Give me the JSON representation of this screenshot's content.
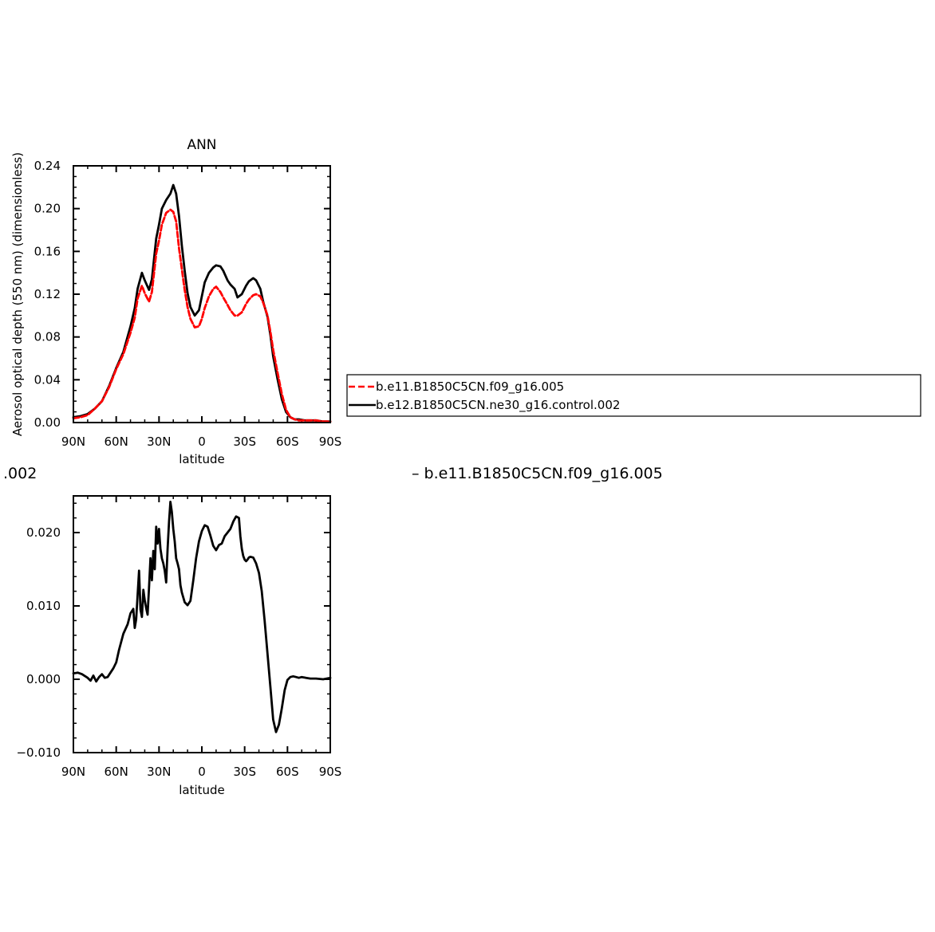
{
  "chart_data": [
    {
      "type": "line",
      "title": "ANN",
      "xlabel": "latitude",
      "ylabel": "Aerosol optical depth (550 nm) (dimensionless)",
      "xlim": [
        90,
        -90
      ],
      "ylim": [
        0.0,
        0.24
      ],
      "x_tick_values": [
        90,
        60,
        30,
        0,
        -30,
        -60,
        -90
      ],
      "x_tick_labels": [
        "90N",
        "60N",
        "30N",
        "0",
        "30S",
        "60S",
        "90S"
      ],
      "y_tick_values": [
        0.0,
        0.04,
        0.08,
        0.12,
        0.16,
        0.2,
        0.24
      ],
      "y_tick_labels": [
        "0.00",
        "0.04",
        "0.08",
        "0.12",
        "0.16",
        "0.20",
        "0.24"
      ],
      "grid": false,
      "legend_position": "right",
      "series": [
        {
          "name": "b.e11.B1850C5CN.f09_g16.005",
          "color": "#ff0000",
          "dash": "dashed",
          "x": [
            90,
            85,
            80,
            75,
            70,
            65,
            60,
            55,
            50,
            47,
            45,
            42,
            40,
            37,
            35,
            32,
            30,
            28,
            25,
            22,
            20,
            18,
            16,
            14,
            12,
            10,
            8,
            5,
            2,
            0,
            -2,
            -5,
            -8,
            -10,
            -13,
            -15,
            -18,
            -20,
            -23,
            -25,
            -28,
            -31,
            -33,
            -36,
            -38,
            -41,
            -43,
            -46,
            -48,
            -50,
            -53,
            -56,
            -59,
            -62,
            -65,
            -68,
            -72,
            -76,
            -80,
            -85,
            -90
          ],
          "y": [
            0.004,
            0.005,
            0.007,
            0.013,
            0.02,
            0.033,
            0.05,
            0.064,
            0.084,
            0.098,
            0.116,
            0.128,
            0.121,
            0.113,
            0.122,
            0.158,
            0.17,
            0.185,
            0.196,
            0.199,
            0.197,
            0.188,
            0.163,
            0.143,
            0.124,
            0.108,
            0.097,
            0.089,
            0.09,
            0.097,
            0.107,
            0.118,
            0.125,
            0.127,
            0.122,
            0.117,
            0.11,
            0.105,
            0.1,
            0.1,
            0.103,
            0.111,
            0.115,
            0.119,
            0.12,
            0.118,
            0.112,
            0.1,
            0.085,
            0.068,
            0.047,
            0.027,
            0.012,
            0.005,
            0.003,
            0.002,
            0.002,
            0.002,
            0.002,
            0.001,
            0.001
          ]
        },
        {
          "name": "b.e12.B1850C5CN.ne30_g16.control.002",
          "color": "#000000",
          "dash": "solid",
          "x": [
            90,
            85,
            80,
            75,
            70,
            65,
            60,
            55,
            50,
            47,
            45,
            42,
            40,
            37,
            35,
            32,
            30,
            28,
            25,
            22,
            20,
            18,
            16,
            14,
            12,
            10,
            8,
            5,
            2,
            0,
            -2,
            -5,
            -8,
            -10,
            -13,
            -15,
            -18,
            -20,
            -23,
            -25,
            -28,
            -31,
            -33,
            -36,
            -38,
            -41,
            -43,
            -46,
            -48,
            -50,
            -53,
            -56,
            -59,
            -62,
            -65,
            -68,
            -72,
            -76,
            -80,
            -85,
            -90
          ],
          "y": [
            0.005,
            0.006,
            0.008,
            0.013,
            0.02,
            0.034,
            0.051,
            0.066,
            0.09,
            0.107,
            0.125,
            0.14,
            0.133,
            0.124,
            0.134,
            0.172,
            0.185,
            0.2,
            0.208,
            0.214,
            0.222,
            0.214,
            0.193,
            0.165,
            0.142,
            0.121,
            0.108,
            0.1,
            0.105,
            0.118,
            0.131,
            0.14,
            0.145,
            0.147,
            0.146,
            0.142,
            0.133,
            0.129,
            0.125,
            0.117,
            0.12,
            0.128,
            0.132,
            0.135,
            0.133,
            0.125,
            0.113,
            0.099,
            0.082,
            0.062,
            0.041,
            0.022,
            0.01,
            0.005,
            0.003,
            0.003,
            0.002,
            0.002,
            0.002,
            0.001,
            0.001
          ]
        }
      ]
    },
    {
      "type": "line",
      "title": ".002",
      "title_right": "– b.e11.B1850C5CN.f09_g16.005",
      "xlabel": "latitude",
      "xlim": [
        90,
        -90
      ],
      "ylim": [
        -0.01,
        0.025
      ],
      "x_tick_values": [
        90,
        60,
        30,
        0,
        -30,
        -60,
        -90
      ],
      "x_tick_labels": [
        "90N",
        "60N",
        "30N",
        "0",
        "30S",
        "60S",
        "90S"
      ],
      "y_tick_values": [
        -0.01,
        0.0,
        0.01,
        0.02
      ],
      "y_tick_labels": [
        "−0.010",
        "0.000",
        "0.010",
        "0.020"
      ],
      "grid": false,
      "series": [
        {
          "color": "#000000",
          "dash": "solid",
          "x": [
            90,
            87,
            84,
            80,
            78,
            76,
            74,
            72,
            70,
            68,
            66,
            64,
            62,
            60,
            58,
            55,
            52,
            50,
            48,
            47,
            46,
            45,
            44,
            43,
            42,
            41,
            40,
            39,
            38,
            37,
            36,
            35,
            34,
            33,
            32,
            31,
            30,
            29,
            28,
            27,
            26,
            25,
            24,
            23,
            22,
            21,
            20,
            19,
            18,
            17,
            16,
            15,
            14,
            12,
            10,
            8,
            6,
            4,
            2,
            0,
            -2,
            -4,
            -6,
            -8,
            -10,
            -12,
            -14,
            -16,
            -18,
            -20,
            -22,
            -24,
            -26,
            -27,
            -28,
            -29,
            -30,
            -31,
            -32,
            -33,
            -34,
            -36,
            -38,
            -40,
            -42,
            -44,
            -46,
            -48,
            -50,
            -52,
            -54,
            -56,
            -58,
            -60,
            -62,
            -64,
            -66,
            -68,
            -70,
            -73,
            -76,
            -80,
            -85,
            -90
          ],
          "y": [
            0.0008,
            0.0009,
            0.0007,
            0.0002,
            -0.0002,
            0.0005,
            -0.0003,
            0.0003,
            0.0007,
            0.0002,
            0.0003,
            0.0009,
            0.0015,
            0.0023,
            0.004,
            0.0062,
            0.0075,
            0.009,
            0.0096,
            0.007,
            0.0082,
            0.0115,
            0.0148,
            0.0095,
            0.0085,
            0.0122,
            0.0108,
            0.0097,
            0.0088,
            0.0125,
            0.0165,
            0.0135,
            0.0175,
            0.015,
            0.0208,
            0.0185,
            0.0205,
            0.0178,
            0.0165,
            0.0158,
            0.0148,
            0.0132,
            0.0178,
            0.0215,
            0.0242,
            0.0228,
            0.0205,
            0.0188,
            0.0165,
            0.0158,
            0.015,
            0.0128,
            0.0118,
            0.0105,
            0.0101,
            0.0107,
            0.0135,
            0.0165,
            0.0188,
            0.0202,
            0.021,
            0.0208,
            0.0196,
            0.0182,
            0.0176,
            0.0183,
            0.0185,
            0.0195,
            0.02,
            0.0205,
            0.0215,
            0.0222,
            0.022,
            0.0195,
            0.0178,
            0.0168,
            0.0163,
            0.0161,
            0.0163,
            0.0166,
            0.0167,
            0.0166,
            0.0158,
            0.0145,
            0.012,
            0.008,
            0.0035,
            -0.001,
            -0.0055,
            -0.0072,
            -0.0062,
            -0.004,
            -0.0015,
            -0.0001,
            0.0003,
            0.0004,
            0.0003,
            0.0002,
            0.0003,
            0.0002,
            0.0001,
            0.0001,
            0.0,
            0.0002
          ]
        }
      ]
    }
  ]
}
